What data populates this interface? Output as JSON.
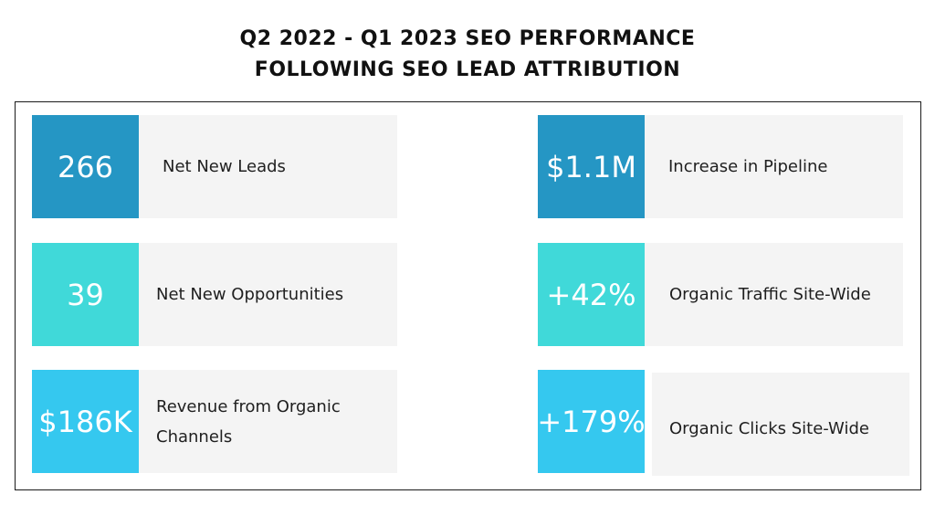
{
  "title": {
    "line1": "Q2 2022 - Q1 2023 SEO PERFORMANCE",
    "line2": "FOLLOWING SEO LEAD ATTRIBUTION"
  },
  "colors": {
    "row1": "#2596c4",
    "row2": "#40d9d9",
    "row3": "#35c8ef",
    "card_bg": "#f4f4f4"
  },
  "metrics": [
    {
      "value": "266",
      "label": "Net New Leads"
    },
    {
      "value": "$1.1M",
      "label": "Increase in Pipeline"
    },
    {
      "value": "39",
      "label": "Net New Opportunities"
    },
    {
      "value": "+42%",
      "label": "Organic Traffic Site-Wide"
    },
    {
      "value": "$186K",
      "label": "Revenue from Organic Channels"
    },
    {
      "value": "+179%",
      "label": "Organic Clicks Site-Wide"
    }
  ]
}
